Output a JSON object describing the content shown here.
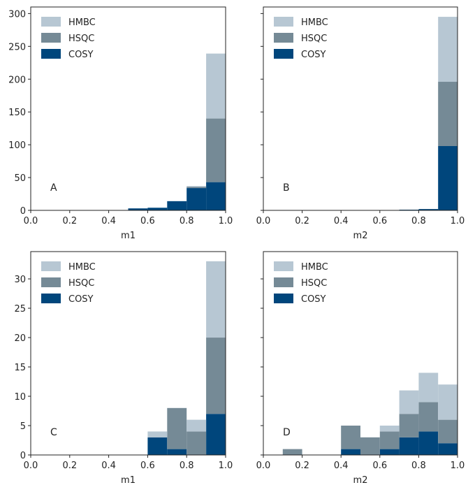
{
  "colors": {
    "HMBC": "#b7c7d3",
    "HSQC": "#758a96",
    "COSY": "#00467c"
  },
  "chart_data": [
    {
      "type": "bar",
      "stacked": true,
      "panel_label": "A",
      "bin_edges": [
        0.0,
        0.1,
        0.2,
        0.3,
        0.4,
        0.5,
        0.6,
        0.7,
        0.8,
        0.9,
        1.0
      ],
      "xlabel": "m1",
      "xlim": [
        0,
        1
      ],
      "ylim": [
        0,
        310
      ],
      "xticks": [
        "0.0",
        "0.2",
        "0.4",
        "0.6",
        "0.8",
        "1.0"
      ],
      "yticks": [
        "0",
        "50",
        "100",
        "150",
        "200",
        "250",
        "300"
      ],
      "legend": [
        "HMBC",
        "HSQC",
        "COSY"
      ],
      "legend_position": "top-left",
      "series": [
        {
          "name": "COSY",
          "values": [
            0,
            0,
            0,
            0,
            0,
            3,
            4,
            14,
            34,
            43
          ]
        },
        {
          "name": "HSQC",
          "values": [
            0,
            0,
            0,
            0,
            0,
            0,
            0,
            0,
            2,
            97
          ]
        },
        {
          "name": "HMBC",
          "values": [
            0,
            0,
            0,
            0,
            0,
            0,
            0,
            0,
            1,
            99
          ]
        }
      ]
    },
    {
      "type": "bar",
      "stacked": true,
      "panel_label": "B",
      "bin_edges": [
        0.0,
        0.1,
        0.2,
        0.3,
        0.4,
        0.5,
        0.6,
        0.7,
        0.8,
        0.9,
        1.0
      ],
      "xlabel": "m2",
      "xlim": [
        0,
        1
      ],
      "ylim": [
        0,
        310
      ],
      "shared_y": true,
      "xticks": [
        "0.0",
        "0.2",
        "0.4",
        "0.6",
        "0.8",
        "1.0"
      ],
      "legend": [
        "HMBC",
        "HSQC",
        "COSY"
      ],
      "legend_position": "top-left",
      "series": [
        {
          "name": "COSY",
          "values": [
            0,
            0,
            0,
            0,
            0,
            0,
            0,
            1,
            2,
            98
          ]
        },
        {
          "name": "HSQC",
          "values": [
            0,
            0,
            0,
            0,
            0,
            0,
            0,
            0,
            0,
            98
          ]
        },
        {
          "name": "HMBC",
          "values": [
            0,
            0,
            0,
            0,
            0,
            0,
            0,
            0,
            0,
            99
          ]
        }
      ]
    },
    {
      "type": "bar",
      "stacked": true,
      "panel_label": "C",
      "bin_edges": [
        0.0,
        0.1,
        0.2,
        0.3,
        0.4,
        0.5,
        0.6,
        0.7,
        0.8,
        0.9,
        1.0
      ],
      "xlabel": "m1",
      "xlim": [
        0,
        1
      ],
      "ylim": [
        0,
        34.65
      ],
      "xticks": [
        "0.0",
        "0.2",
        "0.4",
        "0.6",
        "0.8",
        "1.0"
      ],
      "yticks": [
        "0",
        "5",
        "10",
        "15",
        "20",
        "25",
        "30"
      ],
      "legend": [
        "HMBC",
        "HSQC",
        "COSY"
      ],
      "legend_position": "top-left",
      "series": [
        {
          "name": "COSY",
          "values": [
            0,
            0,
            0,
            0,
            0,
            0,
            3,
            1,
            0,
            7
          ]
        },
        {
          "name": "HSQC",
          "values": [
            0,
            0,
            0,
            0,
            0,
            0,
            0,
            7,
            4,
            13
          ]
        },
        {
          "name": "HMBC",
          "values": [
            0,
            0,
            0,
            0,
            0,
            0,
            1,
            0,
            2,
            13
          ]
        }
      ]
    },
    {
      "type": "bar",
      "stacked": true,
      "panel_label": "D",
      "bin_edges": [
        0.0,
        0.1,
        0.2,
        0.3,
        0.4,
        0.5,
        0.6,
        0.7,
        0.8,
        0.9,
        1.0
      ],
      "xlabel": "m2",
      "xlim": [
        0,
        1
      ],
      "ylim": [
        0,
        34.65
      ],
      "shared_y": true,
      "xticks": [
        "0.0",
        "0.2",
        "0.4",
        "0.6",
        "0.8",
        "1.0"
      ],
      "legend": [
        "HMBC",
        "HSQC",
        "COSY"
      ],
      "legend_position": "top-left",
      "series": [
        {
          "name": "COSY",
          "values": [
            0,
            0,
            0,
            0,
            1,
            0,
            1,
            3,
            4,
            2
          ]
        },
        {
          "name": "HSQC",
          "values": [
            0,
            1,
            0,
            0,
            4,
            3,
            3,
            4,
            5,
            4
          ]
        },
        {
          "name": "HMBC",
          "values": [
            0,
            0,
            0,
            0,
            0,
            0,
            1,
            4,
            5,
            6
          ]
        }
      ]
    }
  ]
}
